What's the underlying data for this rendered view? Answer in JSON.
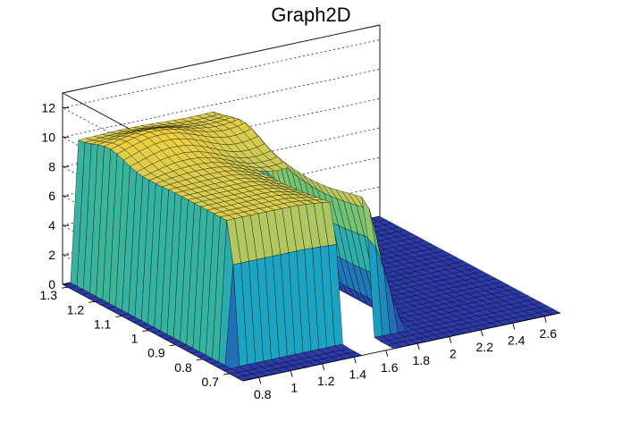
{
  "chart_data": {
    "type": "surface3d",
    "title": "Graph2D",
    "xlabel": "",
    "ylabel": "",
    "zlabel": "",
    "xlim": [
      0.7,
      2.7
    ],
    "ylim": [
      0.65,
      1.32
    ],
    "zlim": [
      0,
      13
    ],
    "x_ticks": [
      "0.8",
      "1",
      "1.2",
      "1.4",
      "1.6",
      "1.8",
      "2",
      "2.2",
      "2.4",
      "2.6"
    ],
    "y_ticks": [
      "0.7",
      "0.8",
      "0.9",
      "1",
      "1.1",
      "1.2",
      "1.3"
    ],
    "z_ticks": [
      "0",
      "2",
      "4",
      "6",
      "8",
      "10",
      "12"
    ],
    "grid": true,
    "colormap": "viridis-like (blue → teal → green → yellow)",
    "colors": {
      "low": "#2b3aa8",
      "mid_low": "#1aa3c4",
      "mid": "#4fc080",
      "mid_high": "#c9c95a",
      "high": "#f4d13a"
    },
    "surface_description": {
      "plateau_height": 9.5,
      "plateau_x_range": [
        0.75,
        1.65
      ],
      "plateau_y_range": [
        0.72,
        1.3
      ],
      "front_ridge_height": 9.0,
      "back_ridge_height": 10.6,
      "floor_height": 0,
      "gap_x_range": [
        1.45,
        1.65
      ],
      "gap_y_range": [
        0.65,
        1.02
      ]
    }
  }
}
